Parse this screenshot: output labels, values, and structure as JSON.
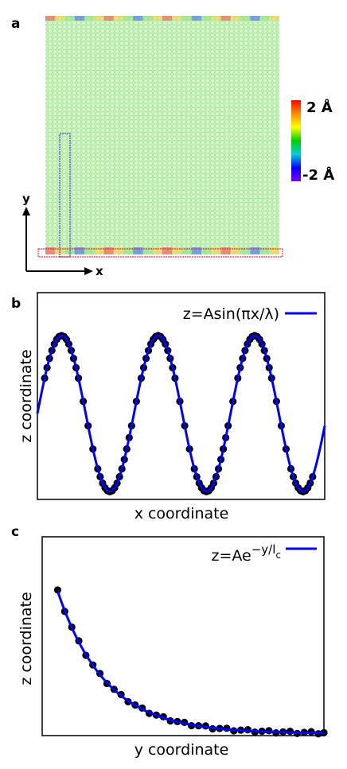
{
  "panels": {
    "a": {
      "letter": "a",
      "colorbar": {
        "top_label": "2 Å",
        "bottom_label": "-2 Å",
        "colors": [
          "#ff0000",
          "#ff8c00",
          "#ffff00",
          "#00d000",
          "#00d0d0",
          "#0000ff",
          "#8000ff"
        ]
      },
      "axes": {
        "x_label": "x",
        "y_label": "y"
      },
      "lattice_colors": {
        "base": "#8ee07a",
        "edge_high": "#ff4040",
        "edge_mid": "#ffd040",
        "edge_low": "#3060ff"
      },
      "box_colors": {
        "vertical_box": "#3a3ad8",
        "horizontal_box": "#e0305a"
      }
    },
    "b": {
      "letter": "b",
      "legend": "z=Asin(πx/λ)"
    },
    "c": {
      "letter": "c",
      "legend_main": "z=Ae",
      "legend_exponent": "−y/l",
      "legend_subscript": "c"
    }
  },
  "chart_data": [
    {
      "panel": "b",
      "type": "line",
      "xlabel": "x coordinate",
      "ylabel": "z coordinate",
      "xlim": [
        0,
        5.95
      ],
      "ylim": [
        -1.1,
        1.55
      ],
      "grid": false,
      "legend_position": "top-right",
      "series": [
        {
          "name": "z=Asin(πx/λ)",
          "kind": "fit-line",
          "color": "#0000ff",
          "function": "sin(pi*x)",
          "x_range": [
            0,
            5.95
          ]
        },
        {
          "kind": "points",
          "color": "#000000",
          "x": [
            0.15,
            0.2,
            0.25,
            0.3,
            0.35,
            0.4,
            0.45,
            0.5,
            0.55,
            0.6,
            0.65,
            0.7,
            0.75,
            0.8,
            0.85,
            0.95,
            1.05,
            1.15,
            1.25,
            1.3,
            1.35,
            1.4,
            1.45,
            1.5,
            1.55,
            1.6,
            1.65,
            1.7,
            1.75,
            1.8,
            1.85,
            1.9,
            1.95,
            2.05,
            2.15,
            2.2,
            2.25,
            2.3,
            2.35,
            2.4,
            2.45,
            2.5,
            2.55,
            2.6,
            2.65,
            2.7,
            2.75,
            2.8,
            2.85,
            2.95,
            3.05,
            3.15,
            3.25,
            3.3,
            3.35,
            3.4,
            3.45,
            3.5,
            3.55,
            3.6,
            3.65,
            3.7,
            3.75,
            3.8,
            3.85,
            3.9,
            3.95,
            4.05,
            4.15,
            4.2,
            4.25,
            4.3,
            4.35,
            4.4,
            4.45,
            4.5,
            4.55,
            4.6,
            4.65,
            4.7,
            4.75,
            4.8,
            4.85,
            4.95,
            5.05,
            5.15,
            5.25,
            5.3,
            5.35,
            5.4,
            5.45,
            5.5,
            5.55,
            5.6,
            5.65,
            5.7
          ],
          "y_function": "sin(pi*x)"
        }
      ]
    },
    {
      "panel": "c",
      "type": "line",
      "xlabel": "y coordinate",
      "ylabel": "z coordinate",
      "xlim": [
        0,
        1
      ],
      "ylim": [
        -0.01,
        1.0
      ],
      "grid": false,
      "legend_position": "top-right",
      "series": [
        {
          "name": "z=Ae^{-y/l_c}",
          "kind": "fit-line",
          "color": "#0000ff",
          "function": "exp(-x/0.17)",
          "x_range": [
            0.055,
            1.0
          ]
        },
        {
          "kind": "points",
          "color": "#000000",
          "x": [
            0.055,
            0.08,
            0.105,
            0.13,
            0.155,
            0.18,
            0.205,
            0.23,
            0.255,
            0.28,
            0.305,
            0.33,
            0.355,
            0.38,
            0.405,
            0.43,
            0.455,
            0.48,
            0.505,
            0.53,
            0.555,
            0.58,
            0.605,
            0.63,
            0.655,
            0.68,
            0.705,
            0.73,
            0.755,
            0.78,
            0.805,
            0.83,
            0.855,
            0.88,
            0.905,
            0.93,
            0.955,
            0.98,
            1.0
          ],
          "y_function": "exp(-x/0.17) with slight scatter"
        }
      ]
    }
  ]
}
